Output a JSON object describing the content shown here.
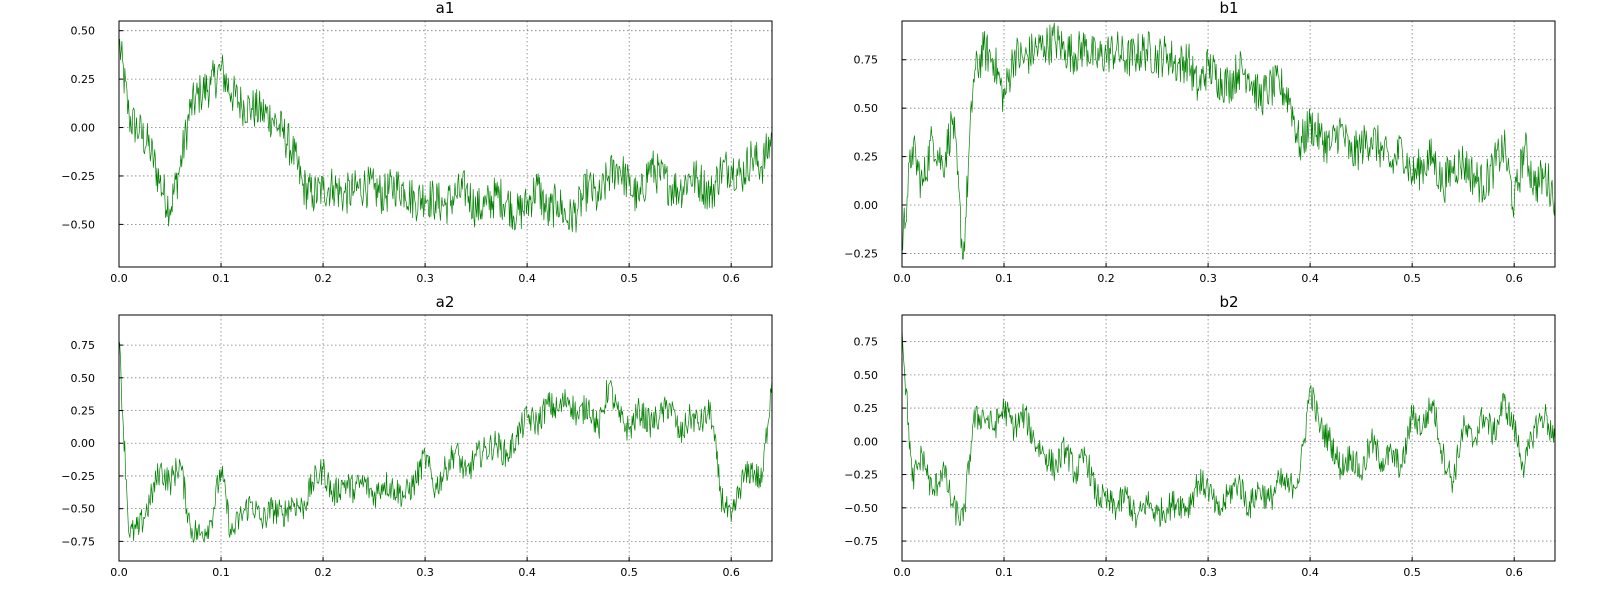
{
  "figure": {
    "background": "#ffffff",
    "line_color": "#008000"
  },
  "chart_data": [
    {
      "type": "line",
      "title": "a1",
      "xlabel": "",
      "ylabel": "",
      "xlim": [
        0,
        0.64
      ],
      "ylim": [
        -0.72,
        0.55
      ],
      "xticks": [
        0.0,
        0.1,
        0.2,
        0.3,
        0.4,
        0.5,
        0.6
      ],
      "xtick_labels": [
        "0.0",
        "0.1",
        "0.2",
        "0.3",
        "0.4",
        "0.5",
        "0.6"
      ],
      "yticks": [
        0.5,
        0.25,
        0.0,
        -0.25,
        -0.5
      ],
      "ytick_labels": [
        "0.50",
        "0.25",
        "0.00",
        "−0.25",
        "−0.50"
      ],
      "grid": true,
      "legend": "none",
      "color": "#008000",
      "series": [
        {
          "x": [
            0.0,
            0.01,
            0.02,
            0.03,
            0.04,
            0.05,
            0.06,
            0.07,
            0.08,
            0.09,
            0.1,
            0.11,
            0.12,
            0.13,
            0.14,
            0.15,
            0.16,
            0.17,
            0.18,
            0.19,
            0.2,
            0.21,
            0.22,
            0.23,
            0.24,
            0.25,
            0.26,
            0.27,
            0.28,
            0.29,
            0.3,
            0.31,
            0.32,
            0.33,
            0.34,
            0.35,
            0.36,
            0.37,
            0.38,
            0.39,
            0.4,
            0.41,
            0.42,
            0.43,
            0.44,
            0.45,
            0.46,
            0.47,
            0.48,
            0.49,
            0.5,
            0.51,
            0.52,
            0.53,
            0.54,
            0.55,
            0.56,
            0.57,
            0.58,
            0.59,
            0.6,
            0.61,
            0.62,
            0.63,
            0.64
          ],
          "y": [
            0.45,
            0.05,
            -0.02,
            -0.1,
            -0.28,
            -0.42,
            -0.2,
            0.1,
            0.18,
            0.22,
            0.3,
            0.18,
            0.12,
            0.1,
            0.08,
            0.05,
            -0.02,
            -0.12,
            -0.3,
            -0.35,
            -0.32,
            -0.3,
            -0.35,
            -0.33,
            -0.3,
            -0.32,
            -0.35,
            -0.3,
            -0.32,
            -0.38,
            -0.35,
            -0.38,
            -0.4,
            -0.35,
            -0.32,
            -0.42,
            -0.4,
            -0.35,
            -0.38,
            -0.45,
            -0.4,
            -0.3,
            -0.45,
            -0.38,
            -0.48,
            -0.42,
            -0.3,
            -0.38,
            -0.25,
            -0.2,
            -0.3,
            -0.38,
            -0.2,
            -0.25,
            -0.3,
            -0.32,
            -0.25,
            -0.28,
            -0.35,
            -0.22,
            -0.2,
            -0.25,
            -0.15,
            -0.2,
            -0.05
          ]
        }
      ]
    },
    {
      "type": "line",
      "title": "b1",
      "xlabel": "",
      "ylabel": "",
      "xlim": [
        0,
        0.64
      ],
      "ylim": [
        -0.32,
        0.95
      ],
      "xticks": [
        0.0,
        0.1,
        0.2,
        0.3,
        0.4,
        0.5,
        0.6
      ],
      "xtick_labels": [
        "0.0",
        "0.1",
        "0.2",
        "0.3",
        "0.4",
        "0.5",
        "0.6"
      ],
      "yticks": [
        0.75,
        0.5,
        0.25,
        0.0,
        -0.25
      ],
      "ytick_labels": [
        "0.75",
        "0.50",
        "0.25",
        "0.00",
        "−0.25"
      ],
      "grid": true,
      "legend": "none",
      "color": "#008000",
      "series": [
        {
          "x": [
            0.0,
            0.01,
            0.02,
            0.03,
            0.04,
            0.05,
            0.06,
            0.07,
            0.08,
            0.09,
            0.1,
            0.11,
            0.12,
            0.13,
            0.14,
            0.15,
            0.16,
            0.17,
            0.18,
            0.19,
            0.2,
            0.21,
            0.22,
            0.23,
            0.24,
            0.25,
            0.26,
            0.27,
            0.28,
            0.29,
            0.3,
            0.31,
            0.32,
            0.33,
            0.34,
            0.35,
            0.36,
            0.37,
            0.38,
            0.39,
            0.4,
            0.41,
            0.42,
            0.43,
            0.44,
            0.45,
            0.46,
            0.47,
            0.48,
            0.49,
            0.5,
            0.51,
            0.52,
            0.53,
            0.54,
            0.55,
            0.56,
            0.57,
            0.58,
            0.59,
            0.6,
            0.61,
            0.62,
            0.63,
            0.64
          ],
          "y": [
            -0.2,
            0.3,
            0.1,
            0.35,
            0.2,
            0.45,
            -0.28,
            0.65,
            0.8,
            0.75,
            0.55,
            0.78,
            0.75,
            0.8,
            0.82,
            0.85,
            0.8,
            0.78,
            0.82,
            0.75,
            0.78,
            0.8,
            0.75,
            0.78,
            0.8,
            0.76,
            0.78,
            0.72,
            0.75,
            0.6,
            0.72,
            0.65,
            0.62,
            0.7,
            0.68,
            0.55,
            0.6,
            0.62,
            0.55,
            0.3,
            0.42,
            0.35,
            0.3,
            0.4,
            0.25,
            0.3,
            0.35,
            0.28,
            0.2,
            0.3,
            0.15,
            0.2,
            0.25,
            0.1,
            0.2,
            0.22,
            0.15,
            0.1,
            0.2,
            0.3,
            0.0,
            0.3,
            0.1,
            0.15,
            0.05
          ]
        }
      ]
    },
    {
      "type": "line",
      "title": "a2",
      "xlabel": "",
      "ylabel": "",
      "xlim": [
        0,
        0.64
      ],
      "ylim": [
        -0.9,
        0.98
      ],
      "xticks": [
        0.0,
        0.1,
        0.2,
        0.3,
        0.4,
        0.5,
        0.6
      ],
      "xtick_labels": [
        "0.0",
        "0.1",
        "0.2",
        "0.3",
        "0.4",
        "0.5",
        "0.6"
      ],
      "yticks": [
        0.75,
        0.5,
        0.25,
        0.0,
        -0.25,
        -0.5,
        -0.75
      ],
      "ytick_labels": [
        "0.75",
        "0.50",
        "0.25",
        "0.00",
        "−0.25",
        "−0.50",
        "−0.75"
      ],
      "grid": true,
      "legend": "none",
      "color": "#008000",
      "series": [
        {
          "x": [
            0.0,
            0.01,
            0.02,
            0.03,
            0.04,
            0.05,
            0.06,
            0.07,
            0.08,
            0.09,
            0.1,
            0.11,
            0.12,
            0.13,
            0.14,
            0.15,
            0.16,
            0.17,
            0.18,
            0.19,
            0.2,
            0.21,
            0.22,
            0.23,
            0.24,
            0.25,
            0.26,
            0.27,
            0.28,
            0.29,
            0.3,
            0.31,
            0.32,
            0.33,
            0.34,
            0.35,
            0.36,
            0.37,
            0.38,
            0.39,
            0.4,
            0.41,
            0.42,
            0.43,
            0.44,
            0.45,
            0.46,
            0.47,
            0.48,
            0.49,
            0.5,
            0.51,
            0.52,
            0.53,
            0.54,
            0.55,
            0.56,
            0.57,
            0.58,
            0.59,
            0.6,
            0.61,
            0.62,
            0.63,
            0.64
          ],
          "y": [
            0.78,
            -0.7,
            -0.65,
            -0.45,
            -0.2,
            -0.3,
            -0.15,
            -0.65,
            -0.7,
            -0.6,
            -0.2,
            -0.7,
            -0.55,
            -0.45,
            -0.6,
            -0.5,
            -0.55,
            -0.45,
            -0.5,
            -0.3,
            -0.2,
            -0.4,
            -0.3,
            -0.35,
            -0.3,
            -0.4,
            -0.3,
            -0.35,
            -0.4,
            -0.3,
            -0.1,
            -0.35,
            -0.2,
            -0.05,
            -0.25,
            -0.1,
            -0.05,
            0.0,
            -0.1,
            0.05,
            0.2,
            0.15,
            0.3,
            0.25,
            0.35,
            0.2,
            0.3,
            0.1,
            0.45,
            0.2,
            0.1,
            0.25,
            0.15,
            0.2,
            0.3,
            0.05,
            0.2,
            0.15,
            0.25,
            -0.4,
            -0.6,
            -0.3,
            -0.2,
            -0.3,
            0.5
          ]
        }
      ]
    },
    {
      "type": "line",
      "title": "b2",
      "xlabel": "",
      "ylabel": "",
      "xlim": [
        0,
        0.64
      ],
      "ylim": [
        -0.9,
        0.95
      ],
      "xticks": [
        0.0,
        0.1,
        0.2,
        0.3,
        0.4,
        0.5,
        0.6
      ],
      "xtick_labels": [
        "0.0",
        "0.1",
        "0.2",
        "0.3",
        "0.4",
        "0.5",
        "0.6"
      ],
      "yticks": [
        0.75,
        0.5,
        0.25,
        0.0,
        -0.25,
        -0.5,
        -0.75
      ],
      "ytick_labels": [
        "0.75",
        "0.50",
        "0.25",
        "0.00",
        "−0.25",
        "−0.50",
        "−0.75"
      ],
      "grid": true,
      "legend": "none",
      "color": "#008000",
      "series": [
        {
          "x": [
            0.0,
            0.01,
            0.02,
            0.03,
            0.04,
            0.05,
            0.06,
            0.07,
            0.08,
            0.09,
            0.1,
            0.11,
            0.12,
            0.13,
            0.14,
            0.15,
            0.16,
            0.17,
            0.18,
            0.19,
            0.2,
            0.21,
            0.22,
            0.23,
            0.24,
            0.25,
            0.26,
            0.27,
            0.28,
            0.29,
            0.3,
            0.31,
            0.32,
            0.33,
            0.34,
            0.35,
            0.36,
            0.37,
            0.38,
            0.39,
            0.4,
            0.41,
            0.42,
            0.43,
            0.44,
            0.45,
            0.46,
            0.47,
            0.48,
            0.49,
            0.5,
            0.51,
            0.52,
            0.53,
            0.54,
            0.55,
            0.56,
            0.57,
            0.58,
            0.59,
            0.6,
            0.61,
            0.62,
            0.63,
            0.64
          ],
          "y": [
            0.85,
            -0.3,
            -0.1,
            -0.4,
            -0.2,
            -0.5,
            -0.6,
            0.15,
            0.2,
            0.1,
            0.25,
            0.1,
            0.2,
            0.0,
            -0.1,
            -0.2,
            -0.05,
            -0.25,
            -0.1,
            -0.4,
            -0.45,
            -0.5,
            -0.4,
            -0.6,
            -0.45,
            -0.55,
            -0.5,
            -0.45,
            -0.5,
            -0.3,
            -0.35,
            -0.55,
            -0.4,
            -0.3,
            -0.5,
            -0.35,
            -0.45,
            -0.3,
            -0.35,
            -0.25,
            0.4,
            0.1,
            0.0,
            -0.2,
            -0.1,
            -0.25,
            0.0,
            -0.15,
            -0.1,
            -0.2,
            0.2,
            0.1,
            0.3,
            -0.1,
            -0.3,
            0.1,
            0.0,
            0.2,
            0.05,
            0.3,
            0.1,
            -0.2,
            0.1,
            0.2,
            0.0
          ]
        }
      ]
    }
  ]
}
